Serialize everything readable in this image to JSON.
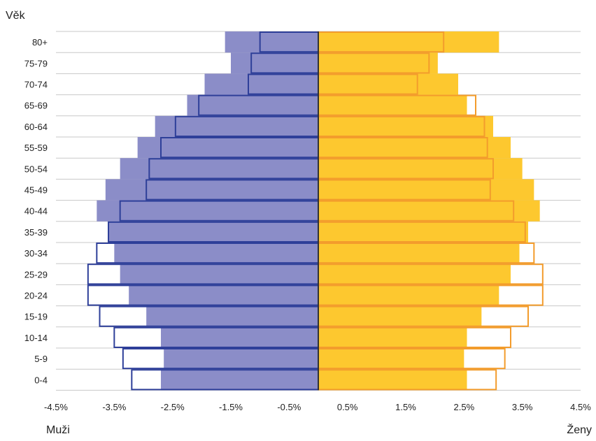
{
  "chart_data": {
    "type": "bar",
    "orientation": "horizontal",
    "layout": "population-pyramid",
    "y_axis_title": "Věk",
    "left_label": "Muži",
    "right_label": "Ženy",
    "categories": [
      "0-4",
      "5-9",
      "10-14",
      "15-19",
      "20-24",
      "25-29",
      "30-34",
      "35-39",
      "40-44",
      "45-49",
      "50-54",
      "55-59",
      "60-64",
      "65-69",
      "70-74",
      "75-79",
      "80+"
    ],
    "x_ticks": [
      "-4.5%",
      "-3.5%",
      "-2.5%",
      "-1.5%",
      "-0.5%",
      "0.5%",
      "1.5%",
      "2.5%",
      "3.5%",
      "4.5%"
    ],
    "x_tick_values": [
      -4.5,
      -3.5,
      -2.5,
      -1.5,
      -0.5,
      0.5,
      1.5,
      2.5,
      3.5,
      4.5
    ],
    "xlim": [
      -4.5,
      4.5
    ],
    "grid": "horizontal",
    "series": [
      {
        "name": "",
        "side": "male",
        "style": "filled",
        "color": "#8b8dc8",
        "values": [
          -2.7,
          -2.65,
          -2.7,
          -2.95,
          -3.25,
          -3.4,
          -3.5,
          -3.6,
          -3.8,
          -3.65,
          -3.4,
          -3.1,
          -2.8,
          -2.25,
          -1.95,
          -1.5,
          -1.6
        ]
      },
      {
        "name": "",
        "side": "male",
        "style": "outline",
        "color": "#2e3f99",
        "values": [
          -3.2,
          -3.35,
          -3.5,
          -3.75,
          -3.95,
          -3.95,
          -3.8,
          -3.6,
          -3.4,
          -2.95,
          -2.9,
          -2.7,
          -2.45,
          -2.05,
          -1.2,
          -1.15,
          -1.0
        ]
      },
      {
        "name": "",
        "side": "female",
        "style": "filled",
        "color": "#fdc82f",
        "values": [
          2.55,
          2.5,
          2.55,
          2.8,
          3.1,
          3.3,
          3.45,
          3.6,
          3.8,
          3.7,
          3.5,
          3.3,
          3.0,
          2.55,
          2.4,
          2.05,
          3.1
        ]
      },
      {
        "name": "",
        "side": "female",
        "style": "outline",
        "color": "#f39c2c",
        "values": [
          3.05,
          3.2,
          3.3,
          3.6,
          3.85,
          3.85,
          3.7,
          3.55,
          3.35,
          2.95,
          3.0,
          2.9,
          2.85,
          2.7,
          1.7,
          1.9,
          2.15
        ]
      }
    ]
  }
}
